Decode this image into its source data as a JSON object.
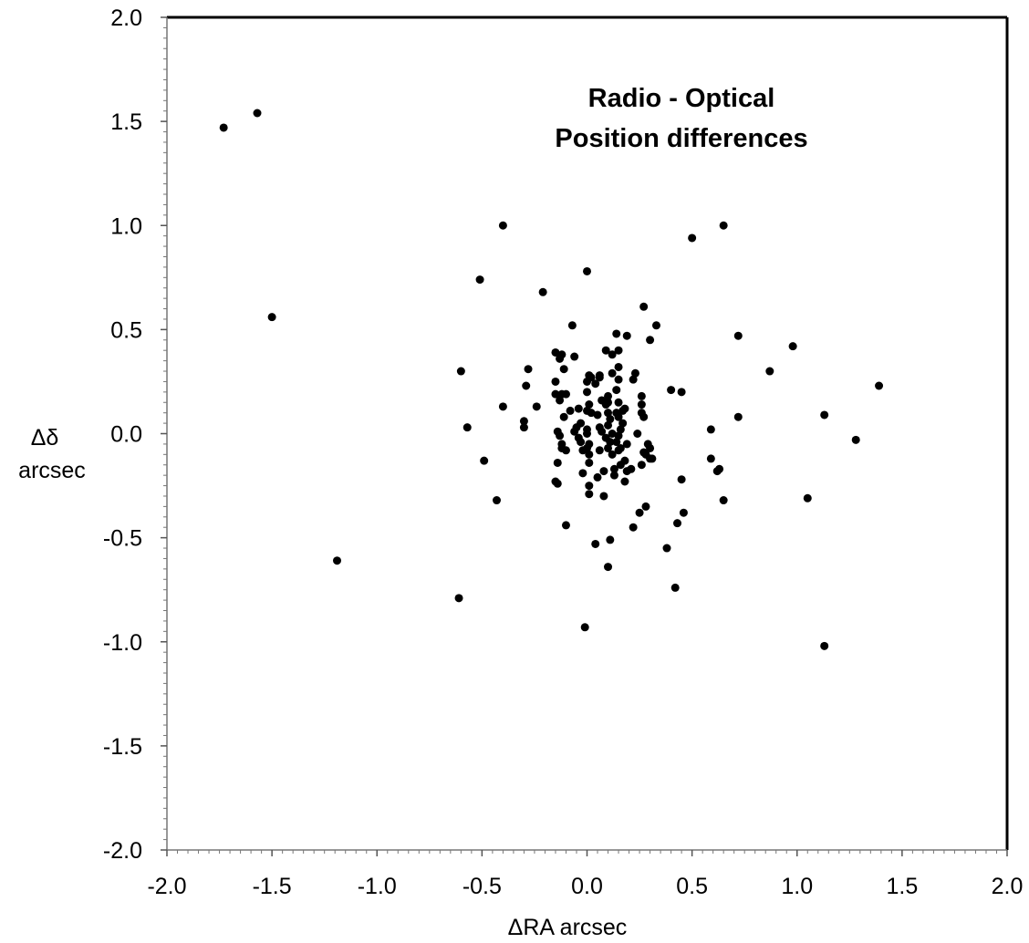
{
  "chart_data": {
    "type": "scatter",
    "title_lines": [
      "Radio - Optical",
      "Position differences"
    ],
    "xlabel": "ΔRA arcsec",
    "ylabel_lines": [
      "Δδ",
      "arcsec"
    ],
    "xlim": [
      -2.0,
      2.0
    ],
    "ylim": [
      -2.0,
      2.0
    ],
    "xticks": [
      "-2.0",
      "-1.5",
      "-1.0",
      "-0.5",
      "0.0",
      "0.5",
      "1.0",
      "1.5",
      "2.0"
    ],
    "yticks": [
      "2.0",
      "1.5",
      "1.0",
      "0.5",
      "0.0",
      "-0.5",
      "-1.0",
      "-1.5",
      "-2.0"
    ],
    "grid": false,
    "marker_color": "#000000",
    "points": [
      [
        -1.73,
        1.47
      ],
      [
        -1.57,
        1.54
      ],
      [
        -1.5,
        0.56
      ],
      [
        -1.19,
        -0.61
      ],
      [
        -0.4,
        1.0
      ],
      [
        -0.51,
        0.74
      ],
      [
        -0.21,
        0.68
      ],
      [
        0.0,
        0.78
      ],
      [
        0.5,
        0.94
      ],
      [
        0.65,
        1.0
      ],
      [
        0.27,
        0.61
      ],
      [
        0.33,
        0.52
      ],
      [
        -0.07,
        0.52
      ],
      [
        0.72,
        0.47
      ],
      [
        0.98,
        0.42
      ],
      [
        0.3,
        0.45
      ],
      [
        0.87,
        0.3
      ],
      [
        1.39,
        0.23
      ],
      [
        1.13,
        0.09
      ],
      [
        0.72,
        0.08
      ],
      [
        1.28,
        -0.03
      ],
      [
        0.59,
        0.02
      ],
      [
        0.59,
        -0.12
      ],
      [
        0.63,
        -0.17
      ],
      [
        0.62,
        -0.18
      ],
      [
        0.65,
        -0.32
      ],
      [
        1.05,
        -0.31
      ],
      [
        1.13,
        -1.02
      ],
      [
        -0.6,
        0.3
      ],
      [
        -0.57,
        0.03
      ],
      [
        -0.4,
        0.13
      ],
      [
        -0.49,
        -0.13
      ],
      [
        -0.43,
        -0.32
      ],
      [
        -0.61,
        -0.79
      ],
      [
        -0.01,
        -0.93
      ],
      [
        0.42,
        -0.74
      ],
      [
        0.1,
        -0.64
      ],
      [
        0.04,
        -0.53
      ],
      [
        0.11,
        -0.51
      ],
      [
        -0.1,
        -0.44
      ],
      [
        0.38,
        -0.55
      ],
      [
        0.43,
        -0.43
      ],
      [
        0.46,
        -0.38
      ],
      [
        0.45,
        -0.22
      ],
      [
        0.4,
        0.21
      ],
      [
        0.45,
        0.2
      ],
      [
        -0.28,
        0.31
      ],
      [
        -0.29,
        0.23
      ],
      [
        -0.3,
        0.06
      ],
      [
        -0.3,
        0.03
      ],
      [
        -0.24,
        0.13
      ],
      [
        -0.15,
        0.39
      ],
      [
        -0.12,
        0.38
      ],
      [
        -0.13,
        0.36
      ],
      [
        -0.11,
        0.31
      ],
      [
        -0.06,
        0.37
      ],
      [
        -0.15,
        0.25
      ],
      [
        -0.12,
        0.19
      ],
      [
        -0.15,
        0.19
      ],
      [
        -0.13,
        0.16
      ],
      [
        -0.1,
        0.19
      ],
      [
        -0.08,
        0.11
      ],
      [
        -0.11,
        0.08
      ],
      [
        -0.14,
        0.01
      ],
      [
        -0.13,
        -0.01
      ],
      [
        -0.12,
        -0.05
      ],
      [
        -0.14,
        -0.14
      ],
      [
        -0.12,
        -0.07
      ],
      [
        -0.15,
        -0.23
      ],
      [
        -0.14,
        -0.24
      ],
      [
        -0.1,
        -0.08
      ],
      [
        -0.06,
        0.01
      ],
      [
        -0.04,
        0.12
      ],
      [
        -0.03,
        0.05
      ],
      [
        -0.04,
        -0.02
      ],
      [
        -0.03,
        -0.04
      ],
      [
        -0.05,
        0.03
      ],
      [
        -0.02,
        -0.08
      ],
      [
        0.0,
        0.0
      ],
      [
        0.0,
        0.02
      ],
      [
        0.01,
        -0.05
      ],
      [
        0.0,
        0.25
      ],
      [
        0.01,
        0.28
      ],
      [
        0.02,
        0.27
      ],
      [
        0.0,
        0.2
      ],
      [
        0.01,
        0.14
      ],
      [
        0.0,
        0.11
      ],
      [
        0.02,
        0.1
      ],
      [
        0.0,
        -0.07
      ],
      [
        0.01,
        -0.14
      ],
      [
        0.01,
        -0.25
      ],
      [
        0.01,
        -0.29
      ],
      [
        0.04,
        0.24
      ],
      [
        0.06,
        0.27
      ],
      [
        0.07,
        0.16
      ],
      [
        0.05,
        0.09
      ],
      [
        0.06,
        0.03
      ],
      [
        0.07,
        0.01
      ],
      [
        0.06,
        -0.08
      ],
      [
        0.05,
        -0.21
      ],
      [
        0.08,
        -0.18
      ],
      [
        0.08,
        -0.3
      ],
      [
        0.09,
        0.4
      ],
      [
        0.12,
        0.38
      ],
      [
        0.12,
        0.29
      ],
      [
        0.1,
        0.18
      ],
      [
        0.1,
        0.15
      ],
      [
        0.09,
        0.14
      ],
      [
        0.1,
        0.1
      ],
      [
        0.11,
        0.07
      ],
      [
        0.1,
        0.04
      ],
      [
        0.11,
        -0.04
      ],
      [
        0.1,
        -0.07
      ],
      [
        0.12,
        -0.1
      ],
      [
        0.13,
        -0.17
      ],
      [
        0.13,
        -0.2
      ],
      [
        0.14,
        0.48
      ],
      [
        0.15,
        0.4
      ],
      [
        0.15,
        0.32
      ],
      [
        0.15,
        0.26
      ],
      [
        0.14,
        0.21
      ],
      [
        0.15,
        0.15
      ],
      [
        0.14,
        0.1
      ],
      [
        0.15,
        0.08
      ],
      [
        0.16,
        0.02
      ],
      [
        0.15,
        -0.01
      ],
      [
        0.14,
        -0.04
      ],
      [
        0.16,
        -0.07
      ],
      [
        0.15,
        -0.08
      ],
      [
        0.16,
        -0.15
      ],
      [
        0.19,
        0.47
      ],
      [
        0.18,
        0.12
      ],
      [
        0.17,
        0.05
      ],
      [
        0.18,
        -0.13
      ],
      [
        0.18,
        -0.23
      ],
      [
        0.19,
        -0.05
      ],
      [
        0.21,
        -0.17
      ],
      [
        0.22,
        0.26
      ],
      [
        0.23,
        0.29
      ],
      [
        0.22,
        -0.45
      ],
      [
        0.25,
        -0.38
      ],
      [
        0.24,
        0.0
      ],
      [
        0.26,
        0.18
      ],
      [
        0.26,
        0.14
      ],
      [
        0.26,
        0.1
      ],
      [
        0.27,
        0.08
      ],
      [
        0.26,
        -0.15
      ],
      [
        0.27,
        -0.09
      ],
      [
        0.28,
        -0.1
      ],
      [
        0.28,
        -0.35
      ],
      [
        0.29,
        -0.05
      ],
      [
        0.3,
        -0.07
      ],
      [
        0.31,
        -0.12
      ],
      [
        0.3,
        -0.12
      ],
      [
        0.12,
        0.0
      ],
      [
        0.09,
        -0.02
      ],
      [
        -0.02,
        -0.19
      ],
      [
        0.17,
        0.11
      ],
      [
        0.06,
        0.28
      ],
      [
        0.01,
        -0.1
      ],
      [
        0.19,
        -0.18
      ]
    ]
  }
}
